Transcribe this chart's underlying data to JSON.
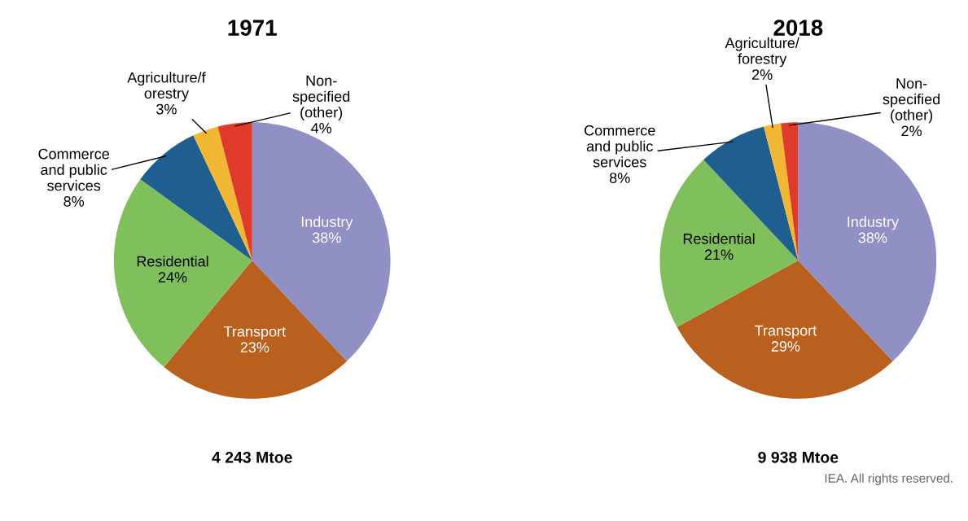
{
  "chart_data": [
    {
      "type": "pie",
      "title": "1971",
      "categories": [
        "Industry",
        "Transport",
        "Residential",
        "Commerce\nand public\nservices",
        "Agriculture/f\norestry",
        "Non-\nspecified\n(other)"
      ],
      "values": [
        38,
        23,
        24,
        8,
        3,
        4
      ],
      "value_labels": [
        "38%",
        "23%",
        "24%",
        "8%",
        "3%",
        "4%"
      ],
      "colors": [
        "#9090c4",
        "#b9601f",
        "#80c05c",
        "#1f5f8f",
        "#f2b733",
        "#e03a2a"
      ],
      "annotations": [
        "4 243 Mtoe"
      ]
    },
    {
      "type": "pie",
      "title": "2018",
      "categories": [
        "Industry",
        "Transport",
        "Residential",
        "Commerce\nand public\nservices",
        "Agriculture/\nforestry",
        "Non-\nspecified\n(other)"
      ],
      "values": [
        38,
        29,
        21,
        8,
        2,
        2
      ],
      "value_labels": [
        "38%",
        "29%",
        "21%",
        "8%",
        "2%",
        "2%"
      ],
      "colors": [
        "#9090c4",
        "#b9601f",
        "#80c05c",
        "#1f5f8f",
        "#f2b733",
        "#e03a2a"
      ],
      "annotations": [
        "9 938 Mtoe",
        "IEA. All rights reserved."
      ]
    }
  ]
}
